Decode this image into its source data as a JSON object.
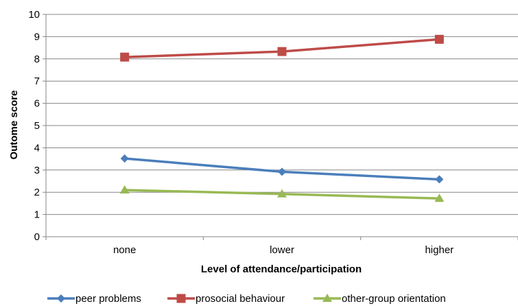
{
  "chart_data": {
    "type": "line",
    "categories": [
      "none",
      "lower",
      "higher"
    ],
    "series": [
      {
        "name": "peer problems",
        "values": [
          3.52,
          2.92,
          2.58
        ],
        "color": "#4a7ebb",
        "marker": "diamond"
      },
      {
        "name": "prosocial behaviour",
        "values": [
          8.08,
          8.33,
          8.88
        ],
        "color": "#be4b48",
        "marker": "square"
      },
      {
        "name": "other-group orientation",
        "values": [
          2.1,
          1.92,
          1.72
        ],
        "color": "#98b954",
        "marker": "triangle"
      }
    ],
    "xlabel": "Level of attendance/participation",
    "ylabel": "Outome score",
    "ylim": [
      0,
      10
    ],
    "yticks": [
      "0",
      "1",
      "2",
      "3",
      "4",
      "5",
      "6",
      "7",
      "8",
      "9",
      "10"
    ],
    "grid": true,
    "legend_position": "bottom"
  }
}
